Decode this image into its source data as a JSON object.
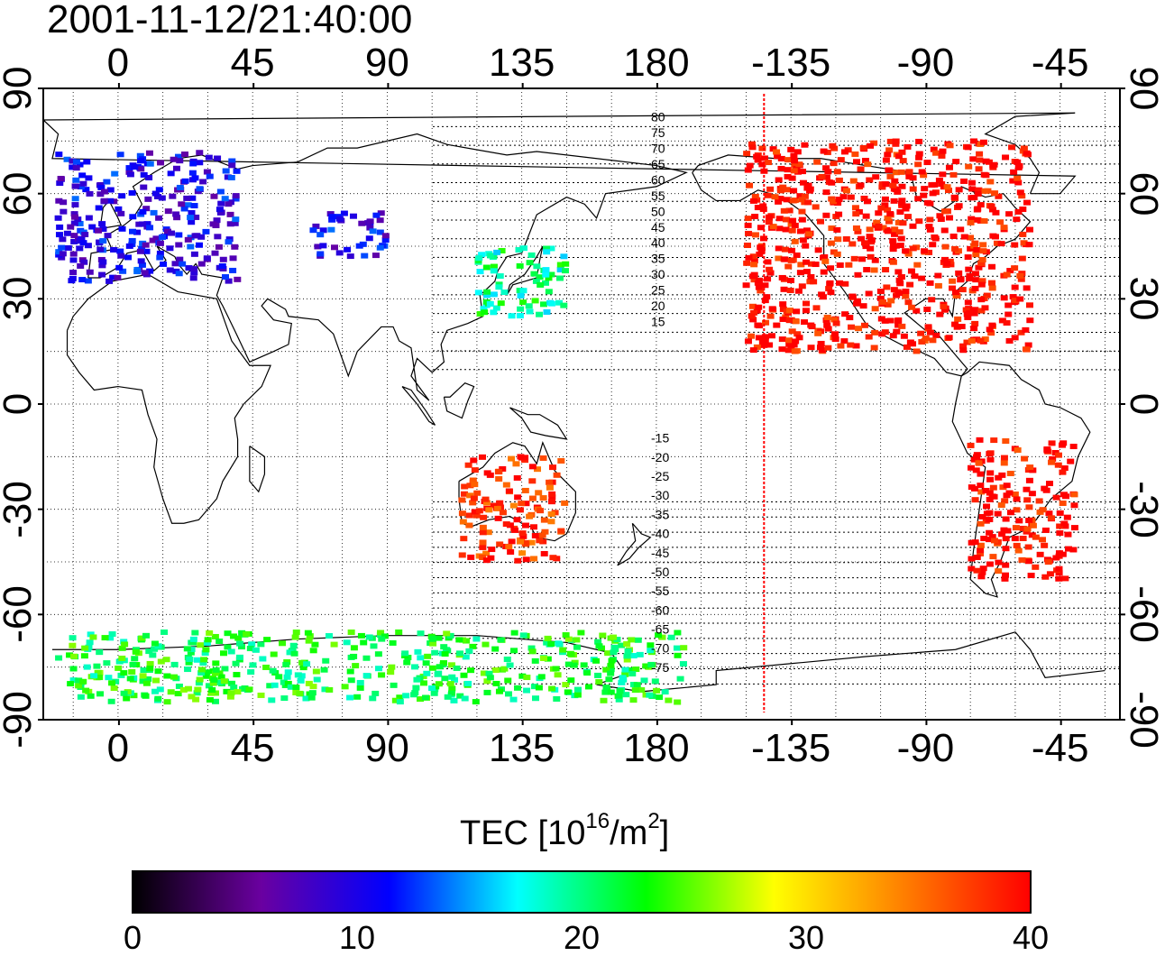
{
  "title": "2001-11-12/21:40:00",
  "top_axis_ticks": [
    "0",
    "45",
    "90",
    "135",
    "180",
    "-135",
    "-90",
    "-45"
  ],
  "bottom_axis_ticks": [
    "0",
    "45",
    "90",
    "135",
    "180",
    "-135",
    "-90",
    "-45"
  ],
  "left_axis_ticks": [
    "90",
    "60",
    "30",
    "0",
    "-30",
    "-60",
    "-90"
  ],
  "right_axis_ticks": [
    "90",
    "60",
    "30",
    "0",
    "-30",
    "-60",
    "-90"
  ],
  "colorbar": {
    "label_prefix": "TEC  [10",
    "label_exp": "16",
    "label_mid": "/m",
    "label_exp2": "2",
    "label_suffix": "]",
    "ticks": [
      "0",
      "10",
      "20",
      "30",
      "40"
    ],
    "min": 0,
    "max": 40,
    "colors": [
      "#000000",
      "#6a00a0",
      "#0000ff",
      "#00ffff",
      "#00ff00",
      "#ffff00",
      "#ff8000",
      "#ff0000"
    ]
  },
  "terminator_color": "#ff0000",
  "contour_labels": [
    "80",
    "75",
    "70",
    "65",
    "60",
    "55",
    "50",
    "45",
    "40",
    "35",
    "30",
    "25",
    "20",
    "15",
    "-15",
    "-20",
    "-25",
    "-30",
    "-35",
    "-40",
    "-45",
    "-50",
    "-55",
    "-60",
    "-65",
    "-70",
    "-75"
  ],
  "map_data": {
    "projection": "equirectangular",
    "lon_range": [
      -25,
      335
    ],
    "lat_range": [
      -90,
      90
    ],
    "graticule_step_deg": 15,
    "terminator_lon_deg": -144,
    "tec_clusters": [
      {
        "region": "Europe",
        "lon": [
          -20,
          40
        ],
        "lat": [
          35,
          72
        ],
        "tec": 10
      },
      {
        "region": "Central Asia",
        "lon": [
          65,
          90
        ],
        "lat": [
          42,
          55
        ],
        "tec": 10
      },
      {
        "region": "East Asia",
        "lon": [
          120,
          150
        ],
        "lat": [
          25,
          45
        ],
        "tec": 20
      },
      {
        "region": "North America",
        "lon": [
          -150,
          -55
        ],
        "lat": [
          15,
          75
        ],
        "tec": 40
      },
      {
        "region": "South America",
        "lon": [
          -75,
          -40
        ],
        "lat": [
          -50,
          -10
        ],
        "tec": 40
      },
      {
        "region": "Australia",
        "lon": [
          115,
          150
        ],
        "lat": [
          -45,
          -15
        ],
        "tec": 38
      },
      {
        "region": "Antarctica",
        "lon": [
          -20,
          190
        ],
        "lat": [
          -85,
          -65
        ],
        "tec": 22
      }
    ]
  }
}
